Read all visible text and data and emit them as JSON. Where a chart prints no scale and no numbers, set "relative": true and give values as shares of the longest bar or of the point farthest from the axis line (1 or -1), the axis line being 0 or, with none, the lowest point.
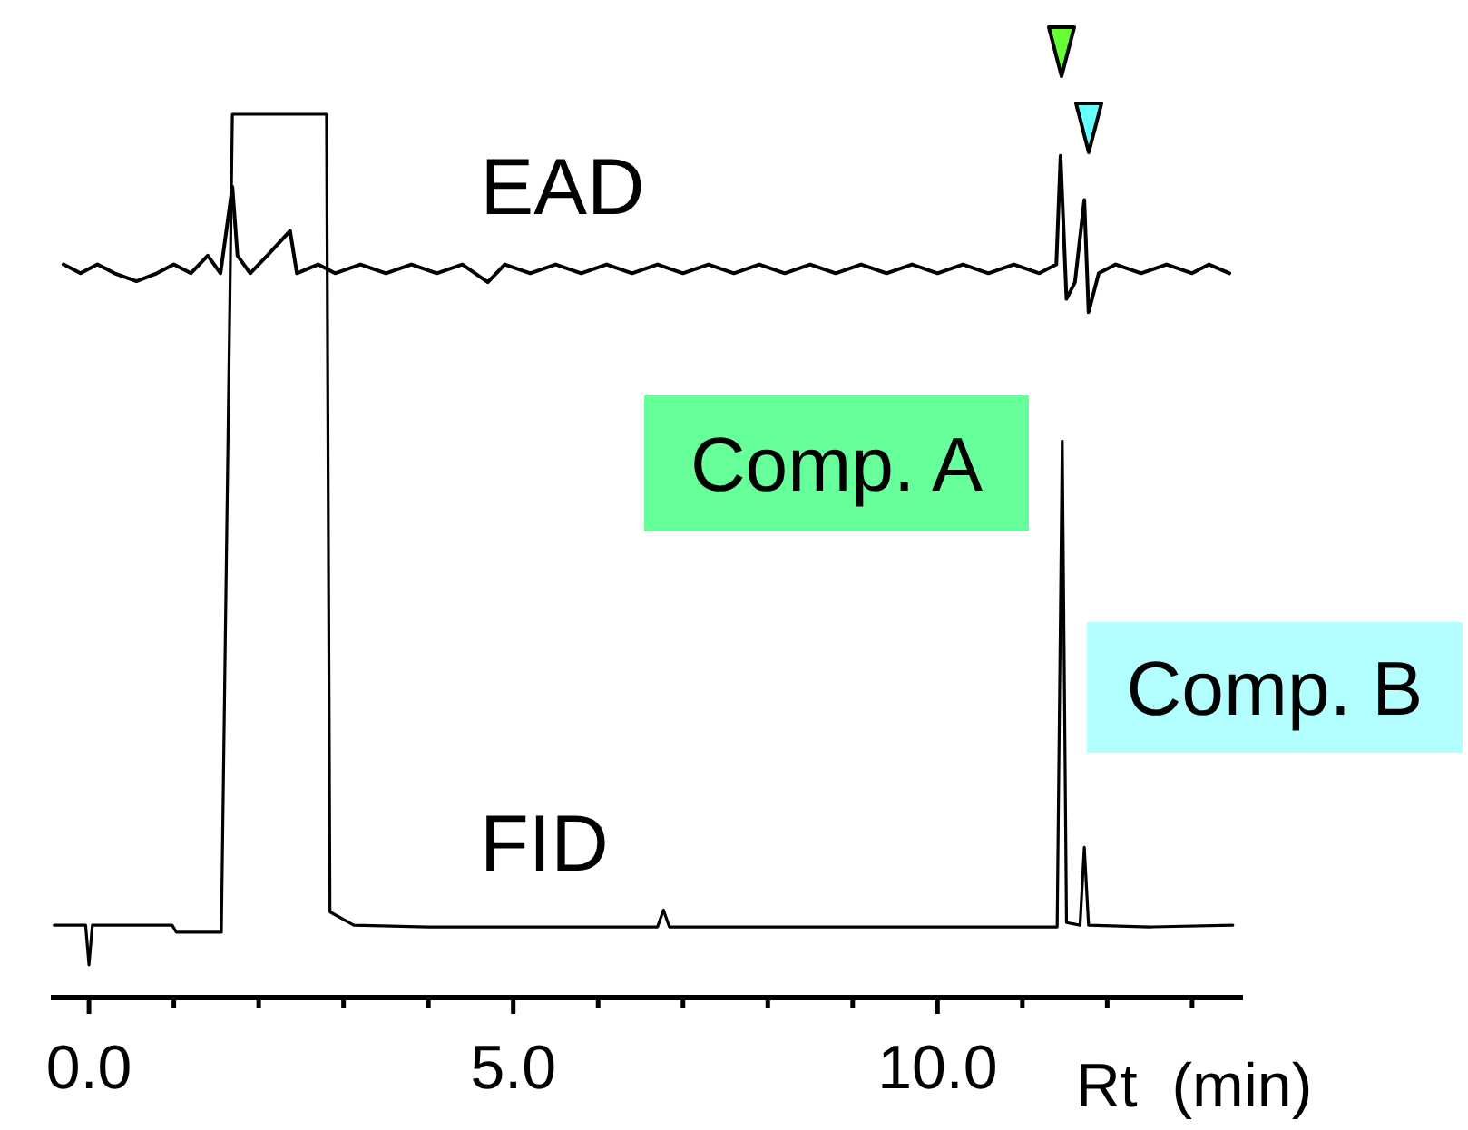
{
  "chart_data": {
    "type": "line",
    "relative": true,
    "xlabel": "Rt  (min)",
    "xlim": [
      -0.45,
      13.6
    ],
    "xticks": [
      {
        "value": 0,
        "label": "0.0"
      },
      {
        "value": 1,
        "label": null
      },
      {
        "value": 2,
        "label": null
      },
      {
        "value": 3,
        "label": null
      },
      {
        "value": 4,
        "label": null
      },
      {
        "value": 5,
        "label": "5.0"
      },
      {
        "value": 6,
        "label": null
      },
      {
        "value": 7,
        "label": null
      },
      {
        "value": 8,
        "label": null
      },
      {
        "value": 9,
        "label": null
      },
      {
        "value": 10,
        "label": "10.0"
      },
      {
        "value": 11,
        "label": null
      },
      {
        "value": 12,
        "label": null
      },
      {
        "value": 13,
        "label": null
      }
    ],
    "series": [
      {
        "name": "EAD",
        "color": "#000000",
        "x": [
          -0.3,
          -0.1,
          0.1,
          0.3,
          0.56,
          0.8,
          1.0,
          1.2,
          1.4,
          1.55,
          1.69,
          1.75,
          1.9,
          2.1,
          2.37,
          2.45,
          2.7,
          2.9,
          3.2,
          3.5,
          3.8,
          4.1,
          4.4,
          4.7,
          4.9,
          5.2,
          5.5,
          5.8,
          6.1,
          6.4,
          6.7,
          7.0,
          7.3,
          7.6,
          7.9,
          8.2,
          8.5,
          8.8,
          9.1,
          9.4,
          9.7,
          10.0,
          10.3,
          10.6,
          10.9,
          11.2,
          11.4,
          11.45,
          11.52,
          11.62,
          11.73,
          11.78,
          11.9,
          12.1,
          12.4,
          12.7,
          13.0,
          13.2,
          13.44
        ],
        "values": [
          0.83,
          0.82,
          0.83,
          0.82,
          0.811,
          0.82,
          0.83,
          0.82,
          0.84,
          0.82,
          0.918,
          0.84,
          0.82,
          0.84,
          0.868,
          0.82,
          0.83,
          0.82,
          0.83,
          0.82,
          0.83,
          0.82,
          0.83,
          0.81,
          0.83,
          0.82,
          0.83,
          0.82,
          0.83,
          0.82,
          0.83,
          0.82,
          0.83,
          0.82,
          0.83,
          0.82,
          0.83,
          0.82,
          0.83,
          0.82,
          0.83,
          0.82,
          0.83,
          0.82,
          0.83,
          0.82,
          0.83,
          0.953,
          0.791,
          0.81,
          0.903,
          0.776,
          0.82,
          0.83,
          0.82,
          0.83,
          0.82,
          0.83,
          0.82
        ]
      },
      {
        "name": "FID",
        "color": "#000000",
        "x": [
          -0.41,
          -0.04,
          0.0,
          0.04,
          0.98,
          1.03,
          1.56,
          1.69,
          2.8,
          2.84,
          3.12,
          4.0,
          5.0,
          6.0,
          6.7,
          6.77,
          6.84,
          8.0,
          9.0,
          10.0,
          11.0,
          11.41,
          11.47,
          11.52,
          11.68,
          11.73,
          11.78,
          12.5,
          13.48
        ],
        "values": [
          0.082,
          0.082,
          0.037,
          0.082,
          0.082,
          0.074,
          0.074,
          1.0,
          1.0,
          0.097,
          0.082,
          0.08,
          0.08,
          0.08,
          0.08,
          0.099,
          0.08,
          0.08,
          0.08,
          0.08,
          0.08,
          0.08,
          0.63,
          0.085,
          0.082,
          0.17,
          0.082,
          0.08,
          0.082
        ]
      }
    ],
    "annotations": [
      "Comp. A",
      "Comp. B"
    ]
  }
}
